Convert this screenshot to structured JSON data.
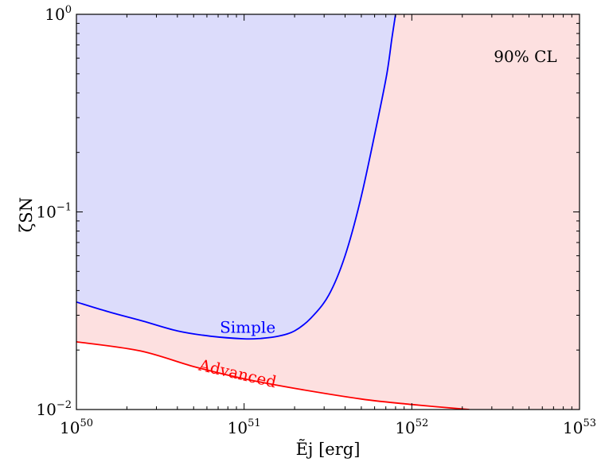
{
  "chart_data": {
    "type": "area",
    "xlabel": "Ẽj [erg]",
    "ylabel": "ζSN",
    "xscale": "log",
    "yscale": "log",
    "xlim": [
      1e+50,
      1e+53
    ],
    "ylim": [
      0.01,
      1
    ],
    "x_ticks": [
      {
        "base": "10",
        "exp": "50",
        "value": 1e+50
      },
      {
        "base": "10",
        "exp": "51",
        "value": 1e+51
      },
      {
        "base": "10",
        "exp": "52",
        "value": 1e+52
      },
      {
        "base": "10",
        "exp": "53",
        "value": 1e+53
      }
    ],
    "y_ticks": [
      {
        "base": "10",
        "exp": "−2",
        "value": 0.01
      },
      {
        "base": "10",
        "exp": "−1",
        "value": 0.1
      },
      {
        "base": "10",
        "exp": "0",
        "value": 1
      }
    ],
    "grid": false,
    "annotation": "90% CL",
    "series": [
      {
        "name": "Simple",
        "color": "#0000ff",
        "fill": "#dcdcfb",
        "x": [
          1e+50,
          1.6e+50,
          2.5e+50,
          4e+50,
          6.3e+50,
          1e+51,
          1.26e+51,
          1.6e+51,
          2e+51,
          2.5e+51,
          3.2e+51,
          4e+51,
          5e+51,
          6.3e+51,
          7.1e+51,
          7.6e+51,
          8e+51
        ],
        "y": [
          0.035,
          0.031,
          0.028,
          0.025,
          0.0235,
          0.0228,
          0.0229,
          0.0235,
          0.025,
          0.029,
          0.038,
          0.06,
          0.12,
          0.3,
          0.5,
          0.75,
          1.0
        ]
      },
      {
        "name": "Advanced",
        "color": "#ff0000",
        "fill": "#fde0e0",
        "x": [
          1e+50,
          2.4e+50,
          5e+50,
          1e+51,
          2e+51,
          5e+51,
          1e+52,
          2.2e+52
        ],
        "y": [
          0.022,
          0.0198,
          0.0165,
          0.0143,
          0.0128,
          0.0113,
          0.0106,
          0.01
        ]
      }
    ],
    "labels": [
      {
        "text": "Simple",
        "series": "Simple",
        "x": 1.05e+51,
        "y": 0.0245,
        "rotate": 0
      },
      {
        "text": "Advanced",
        "series": "Advanced",
        "x": 9e+50,
        "y": 0.0143,
        "rotate": 13
      }
    ]
  }
}
